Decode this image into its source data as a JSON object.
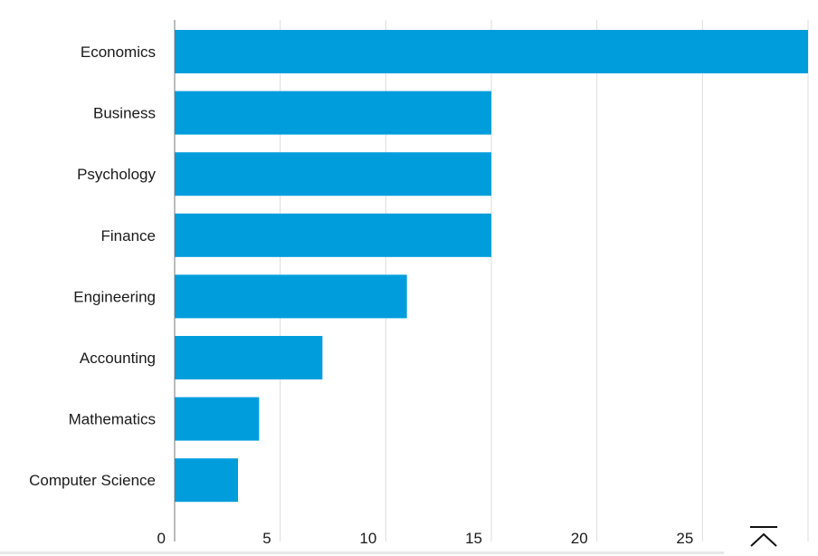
{
  "chart_data": {
    "type": "bar",
    "orientation": "horizontal",
    "categories": [
      "Economics",
      "Business",
      "Psychology",
      "Finance",
      "Engineering",
      "Accounting",
      "Mathematics",
      "Computer Science"
    ],
    "values": [
      30,
      15,
      15,
      15,
      11,
      7,
      4,
      3
    ],
    "xlim": [
      0,
      30
    ],
    "x_ticks": [
      0,
      5,
      10,
      15,
      20,
      25,
      30
    ],
    "x_tick_labels": [
      "0",
      "5",
      "10",
      "15",
      "20",
      "25",
      ""
    ],
    "title": "",
    "xlabel": "",
    "ylabel": "",
    "grid": "vertical",
    "bar_color": "#009ddc"
  },
  "controls": {
    "scroll_to_top_icon": "chevron-up-bar-icon"
  }
}
